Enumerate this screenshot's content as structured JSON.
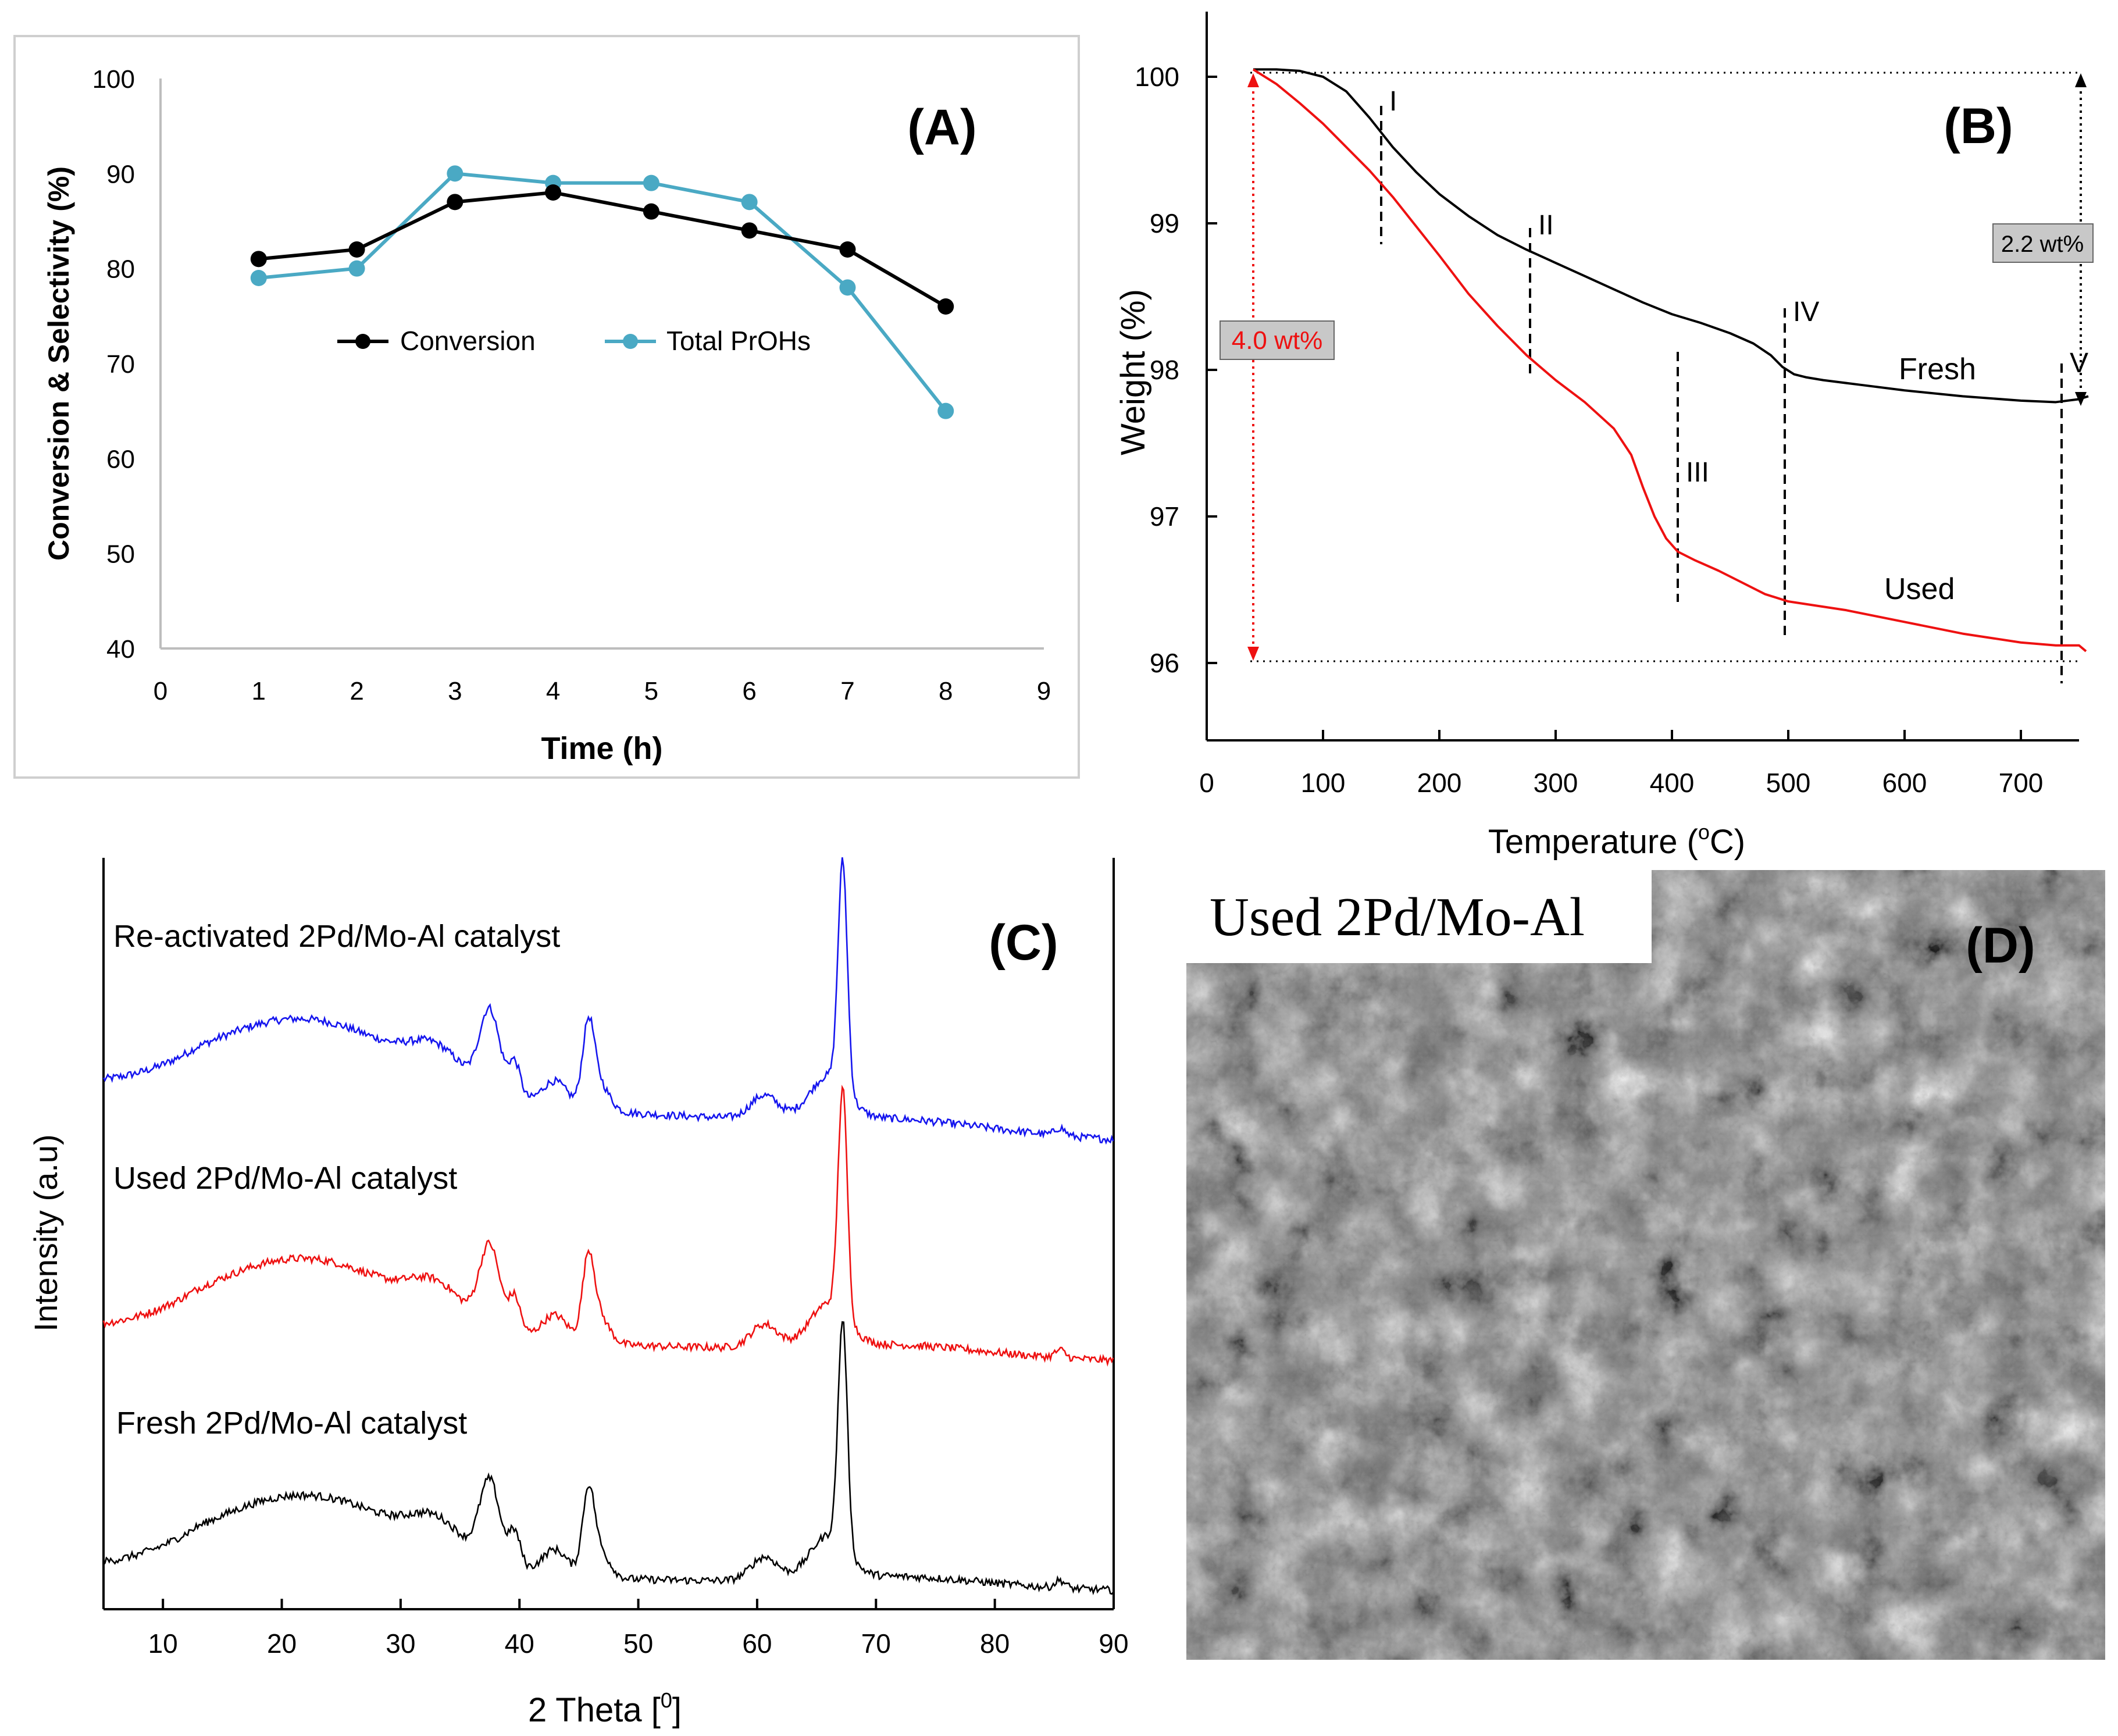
{
  "colors": {
    "black": "#000000",
    "teal": "#4aa9c4",
    "red": "#ee1111",
    "blue": "#1515ee",
    "panel_border": "#cfcfcf",
    "box_fill": "#c8c8c8"
  },
  "chart_data": [
    {
      "panel": "(A)",
      "type": "line",
      "title": "",
      "xlabel": "Time (h)",
      "ylabel": "Conversion & Selectivity (%)",
      "xlim": [
        0,
        9
      ],
      "ylim": [
        40,
        100
      ],
      "x_ticks": [
        "0",
        "1",
        "2",
        "3",
        "4",
        "5",
        "6",
        "7",
        "8",
        "9"
      ],
      "y_ticks": [
        "100",
        "90",
        "80",
        "70",
        "60",
        "50",
        "40"
      ],
      "series": [
        {
          "name": "Conversion",
          "color": "#000000",
          "x": [
            1,
            2,
            3,
            4,
            5,
            6,
            7,
            8
          ],
          "values": [
            81,
            82,
            87,
            88,
            86,
            84,
            82,
            76
          ]
        },
        {
          "name": "Total PrOHs",
          "color": "#4aa9c4",
          "x": [
            1,
            2,
            3,
            4,
            5,
            6,
            7,
            8
          ],
          "values": [
            79,
            80,
            90,
            89,
            89,
            87,
            78,
            65
          ]
        }
      ]
    },
    {
      "panel": "(B)",
      "type": "line",
      "title": "",
      "xlabel": "Temperature (°C)",
      "xlabel_main": "Temperature (",
      "xlabel_sup": "o",
      "xlabel_end": "C)",
      "ylabel": "Weight (%)",
      "xlim": [
        0,
        780
      ],
      "ylim": [
        95.6,
        100.4
      ],
      "x_ticks": [
        "0",
        "100",
        "200",
        "300",
        "400",
        "500",
        "600",
        "700"
      ],
      "y_ticks": [
        "100",
        "99",
        "98",
        "97",
        "96"
      ],
      "series": [
        {
          "name": "Fresh",
          "color": "#000000",
          "x": [
            40,
            60,
            80,
            100,
            120,
            140,
            160,
            180,
            200,
            225,
            250,
            275,
            300,
            325,
            350,
            375,
            400,
            425,
            450,
            470,
            485,
            495,
            505,
            515,
            530,
            560,
            600,
            650,
            700,
            730,
            750,
            758
          ],
          "values": [
            100.05,
            100.05,
            100.04,
            100.0,
            99.9,
            99.72,
            99.52,
            99.35,
            99.2,
            99.05,
            98.92,
            98.82,
            98.73,
            98.64,
            98.55,
            98.46,
            98.38,
            98.32,
            98.25,
            98.18,
            98.1,
            98.02,
            97.97,
            97.95,
            97.93,
            97.9,
            97.86,
            97.82,
            97.79,
            97.78,
            97.8,
            97.82
          ]
        },
        {
          "name": "Used",
          "color": "#ee1111",
          "x": [
            40,
            60,
            80,
            100,
            120,
            140,
            160,
            180,
            200,
            225,
            250,
            275,
            300,
            325,
            350,
            365,
            375,
            385,
            395,
            405,
            420,
            440,
            460,
            480,
            500,
            550,
            600,
            650,
            700,
            730,
            750,
            756
          ],
          "values": [
            100.05,
            99.95,
            99.82,
            99.68,
            99.52,
            99.36,
            99.18,
            98.98,
            98.78,
            98.52,
            98.3,
            98.1,
            97.93,
            97.78,
            97.6,
            97.42,
            97.2,
            97.0,
            96.85,
            96.76,
            96.7,
            96.63,
            96.55,
            96.47,
            96.42,
            96.36,
            96.28,
            96.2,
            96.14,
            96.12,
            96.12,
            96.08
          ]
        }
      ],
      "region_labels": [
        "I",
        "II",
        "III",
        "IV",
        "V"
      ],
      "region_x": [
        150,
        278,
        405,
        497,
        735
      ],
      "annotations": {
        "fresh_loss": "2.2 wt%",
        "used_loss": "4.0 wt%",
        "fresh_label": "Fresh",
        "used_label": "Used"
      }
    },
    {
      "panel": "(C)",
      "type": "line",
      "title": "",
      "xlabel": "2 Theta [0]",
      "xlabel_main": "2 Theta [",
      "xlabel_sup": "0",
      "xlabel_end": "]",
      "ylabel": "Intensity (a.u)",
      "xlim": [
        5,
        90
      ],
      "x_ticks": [
        "10",
        "20",
        "30",
        "40",
        "50",
        "60",
        "70",
        "80",
        "90"
      ],
      "series": [
        {
          "name": "Re-activated 2Pd/Mo-Al catalyst",
          "color": "#1515ee"
        },
        {
          "name": "Used 2Pd/Mo-Al catalyst",
          "color": "#ee1111"
        },
        {
          "name": "Fresh 2Pd/Mo-Al catalyst",
          "color": "#000000"
        }
      ],
      "peaks_2theta": [
        19.5,
        33,
        37.5,
        39.5,
        43,
        45.8,
        60.6,
        67.2,
        85.5
      ]
    }
  ],
  "panels": {
    "a_label": "(A)",
    "b_label": "(B)",
    "c_label": "(C)",
    "d_label": "(D)",
    "d_caption": "Used 2Pd/Mo-Al"
  }
}
